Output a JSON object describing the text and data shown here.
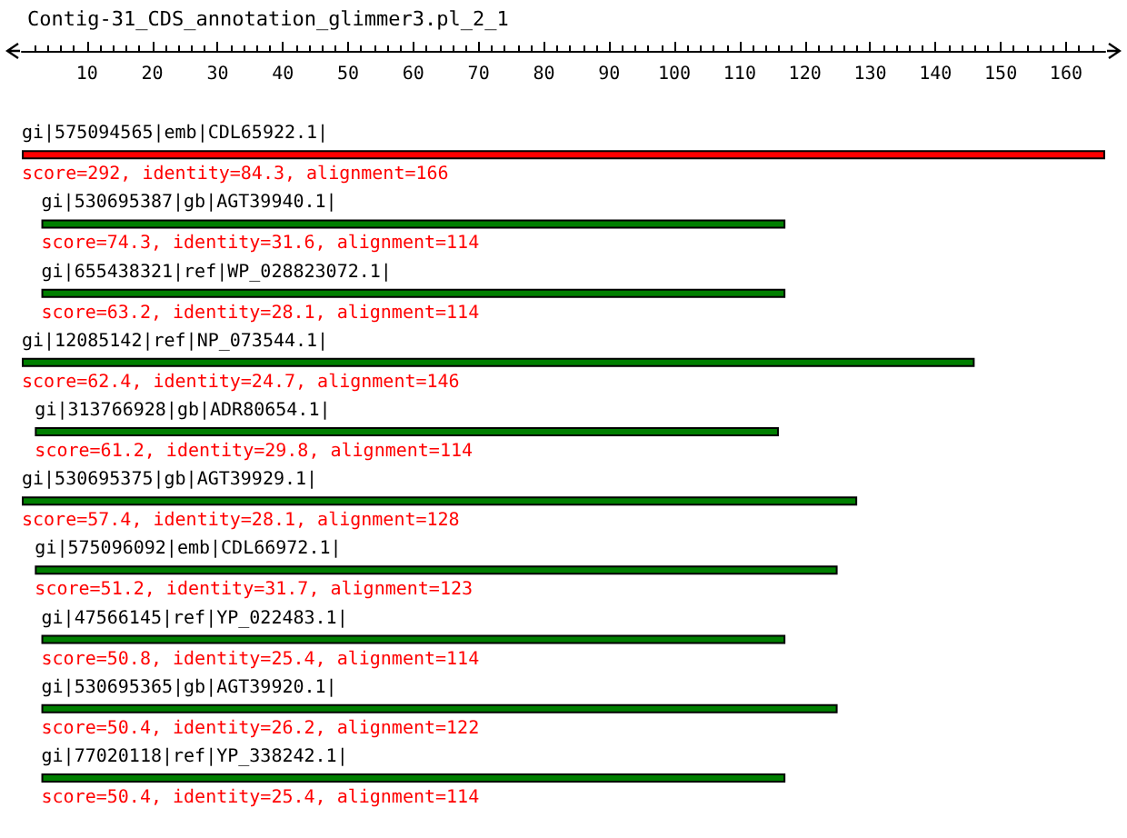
{
  "chart_data": {
    "type": "bar",
    "orientation": "horizontal",
    "title": "Contig-31_CDS_annotation_glimmer3.pl_2_1",
    "categories": [
      "gi|575094565|emb|CDL65922.1|",
      "gi|530695387|gb|AGT39940.1|",
      "gi|655438321|ref|WP_028823072.1|",
      "gi|12085142|ref|NP_073544.1|",
      "gi|313766928|gb|ADR80654.1|",
      "gi|530695375|gb|AGT39929.1|",
      "gi|575096092|emb|CDL66972.1|",
      "gi|47566145|ref|YP_022483.1|",
      "gi|530695365|gb|AGT39920.1|",
      "gi|77020118|ref|YP_338242.1|"
    ],
    "base": [
      0,
      3,
      3,
      0,
      2,
      0,
      2,
      3,
      3,
      3
    ],
    "values": [
      166,
      114,
      114,
      146,
      114,
      128,
      123,
      114,
      122,
      114
    ],
    "colors": [
      "#ff0000",
      "#007f00",
      "#007f00",
      "#007f00",
      "#007f00",
      "#007f00",
      "#007f00",
      "#007f00",
      "#007f00",
      "#007f00"
    ],
    "xlim": [
      0,
      166
    ],
    "xticks": [
      10,
      20,
      30,
      40,
      50,
      60,
      70,
      80,
      90,
      100,
      110,
      120,
      130,
      140,
      150,
      160
    ],
    "tick_labels": "x",
    "grid": false,
    "annotations": [
      {
        "text": "score=292, identity=84.3, alignment=166",
        "x": 0,
        "y": "gi|575094565|emb|CDL65922.1|"
      },
      {
        "text": "score=74.3, identity=31.6, alignment=114",
        "x": 3,
        "y": "gi|530695387|gb|AGT39940.1|"
      },
      {
        "text": "score=63.2, identity=28.1, alignment=114",
        "x": 3,
        "y": "gi|655438321|ref|WP_028823072.1|"
      },
      {
        "text": "score=62.4, identity=24.7, alignment=146",
        "x": 0,
        "y": "gi|12085142|ref|NP_073544.1|"
      },
      {
        "text": "score=61.2, identity=29.8, alignment=114",
        "x": 2,
        "y": "gi|313766928|gb|ADR80654.1|"
      },
      {
        "text": "score=57.4, identity=28.1, alignment=128",
        "x": 0,
        "y": "gi|530695375|gb|AGT39929.1|"
      },
      {
        "text": "score=51.2, identity=31.7, alignment=123",
        "x": 2,
        "y": "gi|575096092|emb|CDL66972.1|"
      },
      {
        "text": "score=50.8, identity=25.4, alignment=114",
        "x": 3,
        "y": "gi|47566145|ref|YP_022483.1|"
      },
      {
        "text": "score=50.4, identity=26.2, alignment=122",
        "x": 3,
        "y": "gi|530695365|gb|AGT39920.1|"
      },
      {
        "text": "score=50.4, identity=25.4, alignment=114",
        "x": 3,
        "y": "gi|77020118|ref|YP_338242.1|"
      }
    ]
  }
}
